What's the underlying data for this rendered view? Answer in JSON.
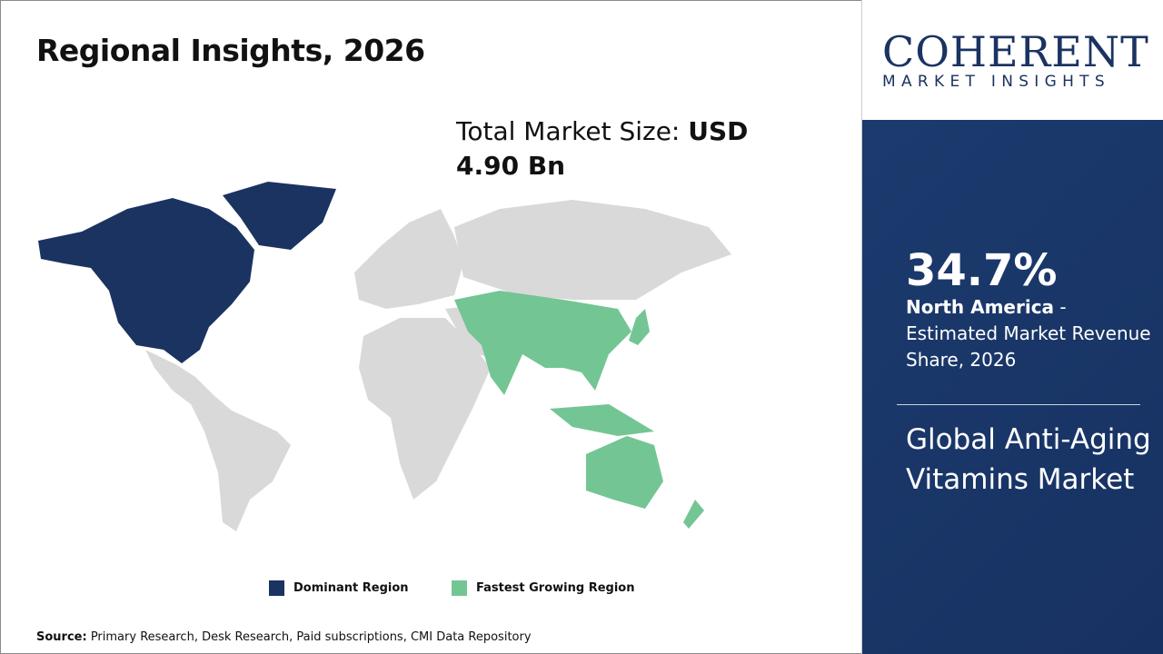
{
  "header": {
    "title": "Regional Insights, 2026"
  },
  "market_size": {
    "label": "Total Market Size: ",
    "value": "USD 4.90 Bn"
  },
  "map": {
    "colors": {
      "dominant": "#1b3361",
      "fastest": "#74c594",
      "other": "#d9d9d9"
    },
    "dominant_region": "North America",
    "fastest_growing_region": "Asia Pacific"
  },
  "legend": [
    {
      "label": "Dominant Region",
      "color": "#1b3361"
    },
    {
      "label": "Fastest Growing Region",
      "color": "#74c594"
    }
  ],
  "source": {
    "label": "Source:",
    "text": " Primary Research, Desk Research, Paid subscriptions, CMI Data Repository"
  },
  "logo": {
    "main": "COHERENT",
    "sub": "MARKET INSIGHTS"
  },
  "panel": {
    "share": "34.7%",
    "region": "North America",
    "desc": " - Estimated Market Revenue Share, 2026",
    "market": "Global Anti-Aging Vitamins Market"
  }
}
